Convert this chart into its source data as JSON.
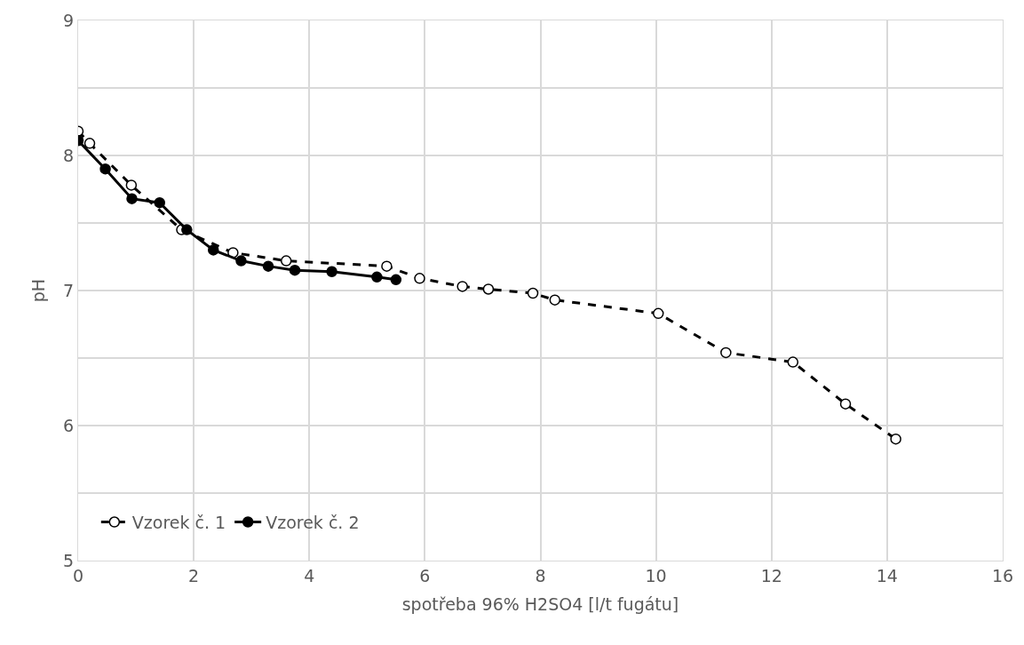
{
  "chart_data": {
    "type": "line",
    "xlabel": "spotřeba 96% H2SO4 [l/t fugátu]",
    "ylabel": "pH",
    "xlim": [
      0,
      16
    ],
    "xticks": [
      0,
      2,
      4,
      6,
      8,
      10,
      12,
      14,
      16
    ],
    "ylim": [
      5,
      9
    ],
    "yticks": [
      5,
      {
        "value": 5.5,
        "label": null
      },
      6,
      {
        "value": 6.5,
        "label": null
      },
      7,
      {
        "value": 7.5,
        "label": null
      },
      8,
      {
        "value": 8.5,
        "label": null
      },
      9
    ],
    "grid": true,
    "legend": "bottom left",
    "series": [
      {
        "name": "Vzorek č. 1",
        "color": "#000000",
        "line_style": "dashed",
        "marker": "circle",
        "x": [
          0,
          0.2,
          0.92,
          1.79,
          2.68,
          3.6,
          5.34,
          5.91,
          6.65,
          7.1,
          7.87,
          8.25,
          10.04,
          11.21,
          12.37,
          13.28,
          14.15
        ],
        "values": [
          8.18,
          8.09,
          7.78,
          7.45,
          7.28,
          7.22,
          7.18,
          7.09,
          7.03,
          7.01,
          6.98,
          6.93,
          6.83,
          6.54,
          6.47,
          6.16,
          5.9
        ]
      },
      {
        "name": "Vzorek č. 2",
        "color": "#000000",
        "line_style": "solid",
        "marker": "circle",
        "x": [
          0,
          0.47,
          0.93,
          1.41,
          1.88,
          2.34,
          2.82,
          3.29,
          3.75,
          4.39,
          5.17,
          5.5
        ],
        "values": [
          8.11,
          7.9,
          7.68,
          7.65,
          7.45,
          7.3,
          7.22,
          7.18,
          7.15,
          7.14,
          7.1,
          7.08
        ]
      }
    ]
  }
}
